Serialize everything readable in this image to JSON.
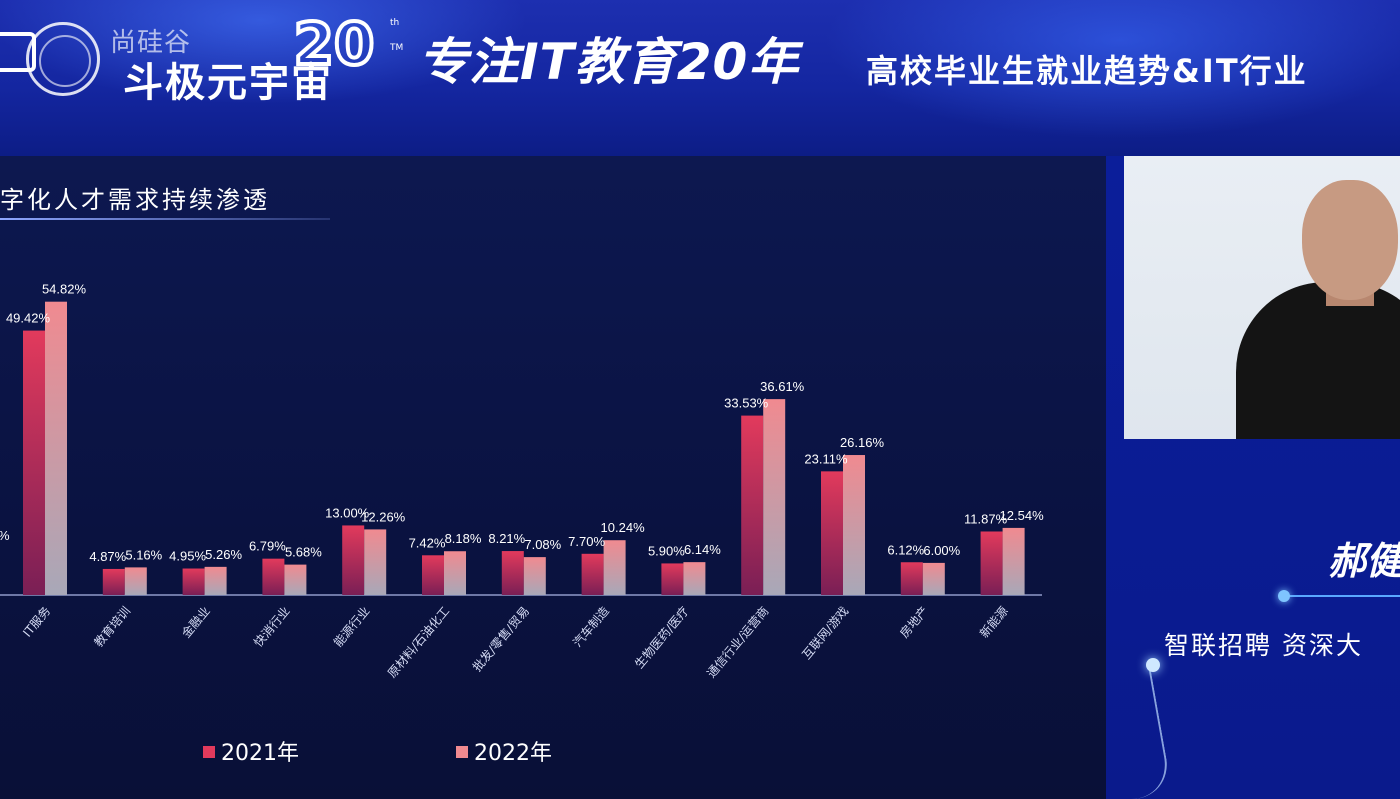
{
  "header": {
    "brand_small": "尚硅谷",
    "brand_main": "斗极元宇宙",
    "tm": "TM",
    "emblem_digits": "20",
    "emblem_th": "th",
    "slogan": "专注IT教育20年",
    "title": "高校毕业生就业趋势&IT行业"
  },
  "chart_panel": {
    "title": "字化人才需求持续渗透"
  },
  "speaker": {
    "name": "郝健",
    "title": "智联招聘 资深大"
  },
  "colors": {
    "bar_2021": "#e23a5c",
    "bar_2022": "#f08a90",
    "bar_2022_fade": "#a8a8b8",
    "background": "#0a1a6e"
  },
  "chart_data": {
    "type": "bar",
    "title": "",
    "xlabel": "",
    "ylabel": "",
    "ylim": [
      0,
      60
    ],
    "grid": false,
    "legend_position": "bottom",
    "categories": [
      "IT服务",
      "教育培训",
      "金融业",
      "快消行业",
      "能源行业",
      "原材料/石油化工",
      "批发/零售/贸易",
      "汽车制造",
      "生物医药/医疗",
      "通信行业/运营商",
      "互联网/游戏",
      "房地产",
      "新能源"
    ],
    "series": [
      {
        "name": "2021年",
        "values": [
          49.42,
          4.87,
          4.95,
          6.79,
          13.0,
          7.42,
          8.21,
          7.7,
          5.9,
          33.53,
          23.11,
          6.12,
          11.87
        ]
      },
      {
        "name": "2022年",
        "values": [
          54.82,
          5.16,
          5.26,
          5.68,
          12.26,
          8.18,
          7.08,
          10.24,
          6.14,
          36.61,
          26.16,
          6.0,
          12.54
        ]
      }
    ],
    "labels_2021": [
      "49.42%",
      "4.87%",
      "4.95%",
      "6.79%",
      "13.00%",
      "7.42%",
      "8.21%",
      "7.70%",
      "5.90%",
      "33.53%",
      "23.11%",
      "6.12%",
      "11.87%"
    ],
    "labels_2022": [
      "54.82%",
      "5.16%",
      "5.26%",
      "5.68%",
      "12.26%",
      "8.18%",
      "7.08%",
      "10.24%",
      "6.14%",
      "36.61%",
      "26.16%",
      "6.00%",
      "12.54%"
    ],
    "legend": [
      "2021年",
      "2022年"
    ]
  }
}
